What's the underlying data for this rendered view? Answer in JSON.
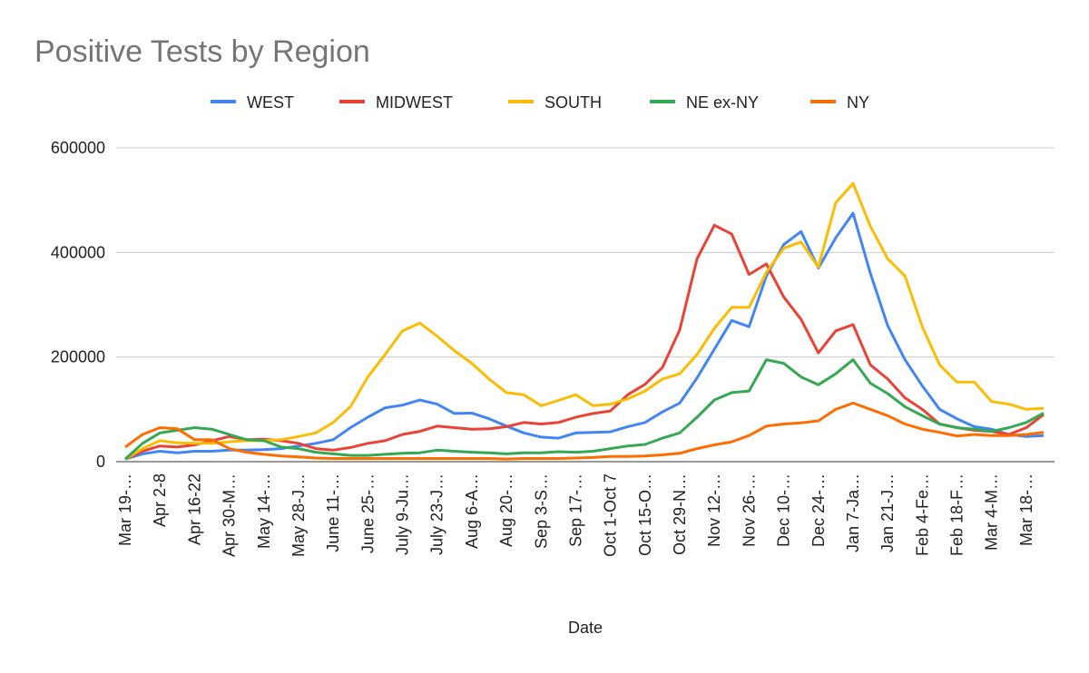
{
  "chart_data": {
    "type": "line",
    "title": "Positive Tests by Region",
    "x_label": "Date",
    "categories": [
      "Mar 19-…",
      null,
      "Apr 2-8",
      null,
      "Apr 16-22",
      null,
      "Apr 30-M…",
      null,
      "May 14-…",
      null,
      "May 28-J…",
      null,
      "June 11-…",
      null,
      "June 25-…",
      null,
      "July 9-Ju…",
      null,
      "July 23-J…",
      null,
      "Aug 6-A…",
      null,
      "Aug 20-…",
      null,
      "Sep 3-S…",
      null,
      "Sep 17-…",
      null,
      "Oct 1-Oct 7",
      null,
      "Oct 15-O…",
      null,
      "Oct 29-N…",
      null,
      "Nov 12-…",
      null,
      "Nov 26-…",
      null,
      "Dec 10-…",
      null,
      "Dec 24-…",
      null,
      "Jan 7-Ja…",
      null,
      "Jan 21-J…",
      null,
      "Feb 4-Fe…",
      null,
      "Feb 18-F…",
      null,
      "Mar 4-M…",
      null,
      "Mar 18-…",
      null
    ],
    "series": [
      {
        "name": "WEST",
        "color": "#4285f4",
        "values": [
          5000,
          15000,
          20000,
          17000,
          20000,
          20000,
          22000,
          22000,
          23000,
          25000,
          30000,
          35000,
          42000,
          65000,
          85000,
          103000,
          108000,
          118000,
          110000,
          92000,
          93000,
          82000,
          68000,
          55000,
          47000,
          45000,
          55000,
          56000,
          57000,
          67000,
          75000,
          95000,
          112000,
          160000,
          215000,
          270000,
          258000,
          355000,
          415000,
          440000,
          370000,
          428000,
          475000,
          360000,
          260000,
          195000,
          145000,
          100000,
          82000,
          67000,
          62000,
          52000,
          48000,
          50000
        ]
      },
      {
        "name": "MIDWEST",
        "color": "#ea4335",
        "values": [
          5000,
          20000,
          30000,
          28000,
          32000,
          40000,
          48000,
          42000,
          43000,
          40000,
          35000,
          25000,
          22000,
          27000,
          35000,
          40000,
          52000,
          58000,
          68000,
          65000,
          62000,
          63000,
          67000,
          75000,
          72000,
          75000,
          85000,
          92000,
          97000,
          128000,
          148000,
          180000,
          252000,
          388000,
          452000,
          435000,
          358000,
          378000,
          315000,
          272000,
          208000,
          250000,
          262000,
          185000,
          158000,
          122000,
          100000,
          72000,
          65000,
          60000,
          58000,
          52000,
          65000,
          90000
        ]
      },
      {
        "name": "SOUTH",
        "color": "#fbbc04",
        "values": [
          5000,
          25000,
          40000,
          36000,
          35000,
          35000,
          38000,
          40000,
          40000,
          42000,
          48000,
          55000,
          75000,
          105000,
          162000,
          205000,
          250000,
          265000,
          240000,
          212000,
          188000,
          158000,
          132000,
          128000,
          107000,
          117000,
          128000,
          107000,
          110000,
          120000,
          135000,
          158000,
          168000,
          205000,
          255000,
          295000,
          295000,
          362000,
          408000,
          420000,
          372000,
          495000,
          532000,
          450000,
          388000,
          355000,
          258000,
          185000,
          152000,
          152000,
          115000,
          110000,
          100000,
          102000
        ]
      },
      {
        "name": "NE ex-NY",
        "color": "#34a853",
        "values": [
          5000,
          35000,
          55000,
          60000,
          65000,
          62000,
          52000,
          42000,
          40000,
          28000,
          25000,
          18000,
          15000,
          12000,
          12000,
          14000,
          16000,
          17000,
          22000,
          20000,
          18000,
          17000,
          15000,
          17000,
          17000,
          19000,
          18000,
          20000,
          25000,
          30000,
          33000,
          45000,
          55000,
          85000,
          118000,
          132000,
          135000,
          195000,
          188000,
          162000,
          147000,
          168000,
          195000,
          150000,
          130000,
          105000,
          88000,
          72000,
          65000,
          62000,
          58000,
          65000,
          75000,
          93000
        ]
      },
      {
        "name": "NY",
        "color": "#ff6d01",
        "values": [
          28000,
          52000,
          65000,
          63000,
          42000,
          42000,
          25000,
          18000,
          14000,
          11000,
          9000,
          7000,
          6000,
          6000,
          6000,
          6000,
          6000,
          6000,
          6000,
          6000,
          6000,
          6000,
          5000,
          6000,
          6000,
          6000,
          7000,
          8000,
          10000,
          10000,
          11000,
          13000,
          16000,
          25000,
          32000,
          38000,
          50000,
          68000,
          72000,
          74000,
          78000,
          100000,
          112000,
          100000,
          88000,
          72000,
          62000,
          56000,
          49000,
          52000,
          50000,
          50000,
          52000,
          56000
        ]
      }
    ],
    "ylim": [
      0,
      600000
    ],
    "yticks": [
      0,
      200000,
      400000,
      600000
    ],
    "grid": true,
    "legend": "top"
  }
}
